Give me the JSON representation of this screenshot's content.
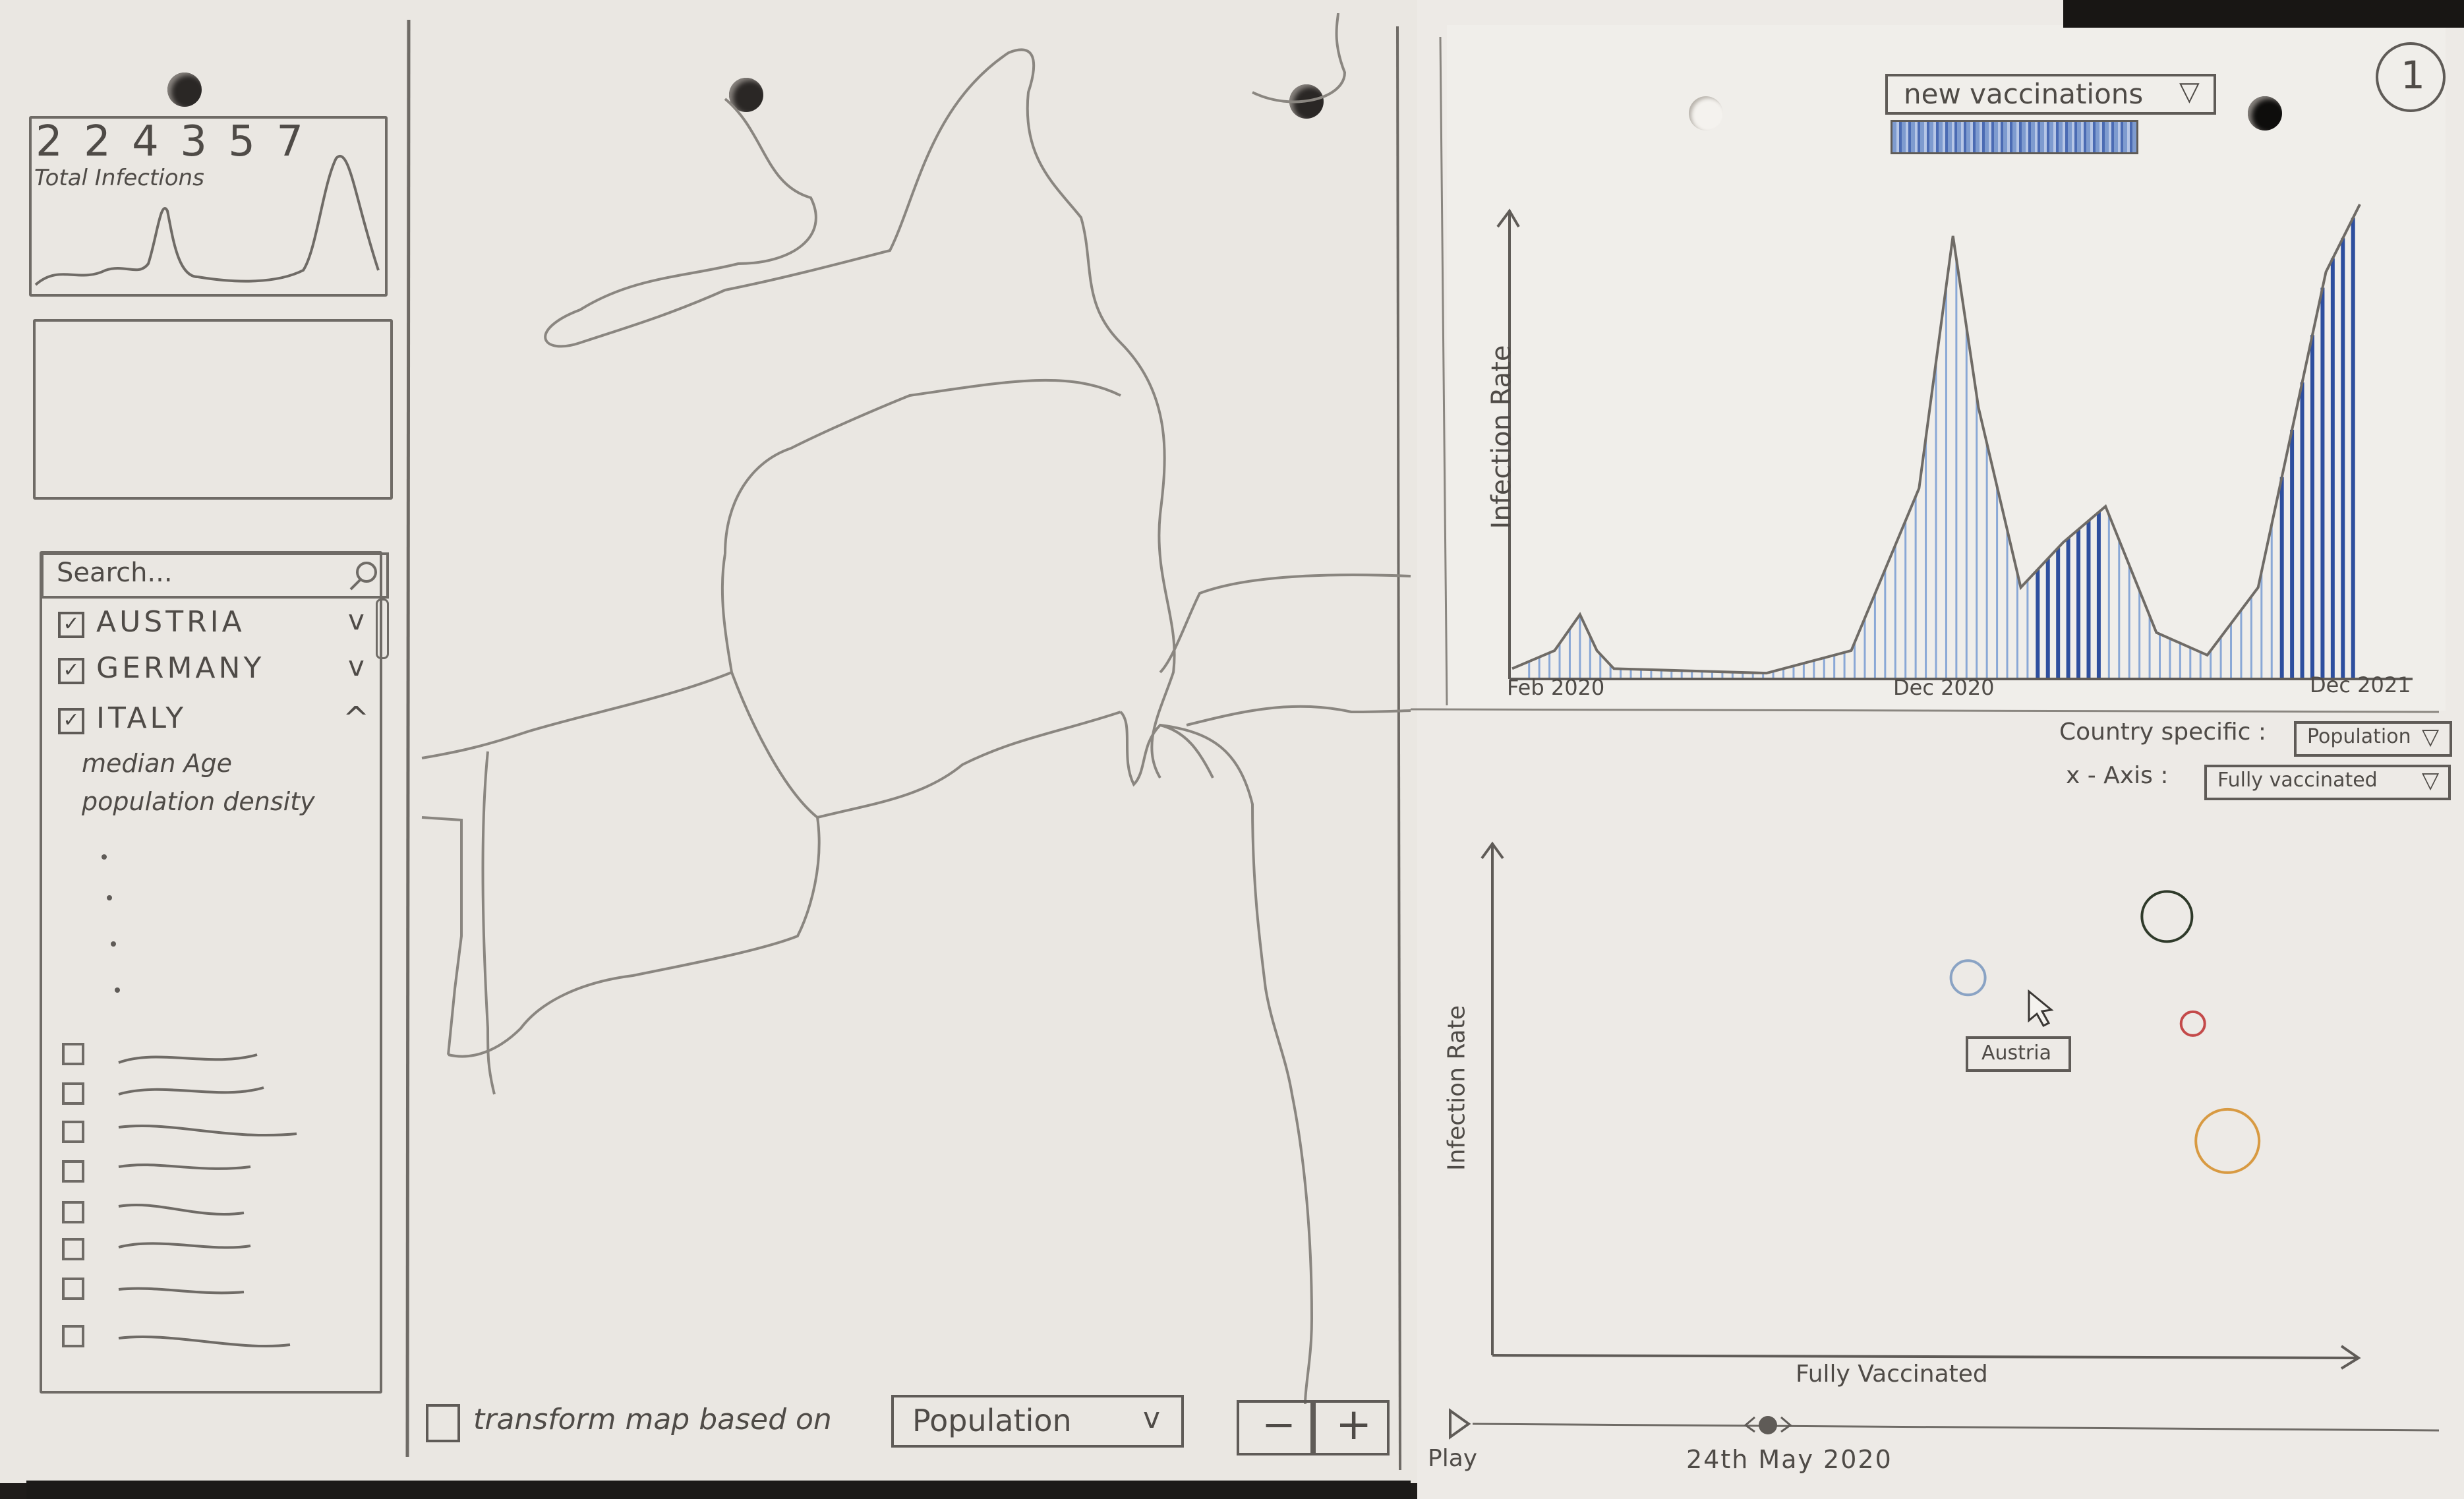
{
  "sidebar": {
    "counter_value": "2 2 4 3 5 7",
    "counter_label": "Total Infections",
    "search_placeholder": "Search...",
    "countries": [
      {
        "label": "AUSTRIA",
        "checked": true,
        "toggle": "v"
      },
      {
        "label": "GERMANY",
        "checked": true,
        "toggle": "v"
      },
      {
        "label": "ITALY",
        "checked": true,
        "toggle": "^"
      }
    ],
    "italy_details": [
      "median Age",
      "population density"
    ]
  },
  "map": {
    "transform_label": "transform map based on",
    "transform_select": "Population",
    "transform_select_caret": "v",
    "zoom_out": "−",
    "zoom_in": "+"
  },
  "timeline_chart": {
    "page_number": "1",
    "metric_select": "new vaccinations",
    "metric_caret": "▽"
  },
  "scatter_chart": {
    "country_specific_label": "Country specific :",
    "country_specific_select": "Population",
    "x_axis_label": "x - Axis :",
    "x_axis_select": "Fully vaccinated",
    "select_caret": "▽",
    "hover_label": "Austria",
    "play_label": "Play",
    "slider_date": "24th May 2020"
  },
  "chart_data": [
    {
      "type": "area",
      "ylabel": "Infection Rate",
      "x_tick_labels": [
        "Feb 2020",
        "Dec 2020",
        "Dec 2021"
      ],
      "series": [
        {
          "x": [
            0,
            0.05,
            0.08,
            0.1,
            0.12,
            0.3,
            0.4,
            0.48,
            0.52,
            0.55,
            0.6,
            0.65,
            0.7,
            0.76,
            0.82,
            0.88,
            0.92,
            0.96,
            1.0
          ],
          "values": [
            0.02,
            0.06,
            0.14,
            0.06,
            0.02,
            0.01,
            0.06,
            0.42,
            0.98,
            0.6,
            0.2,
            0.3,
            0.38,
            0.1,
            0.05,
            0.2,
            0.55,
            0.9,
            1.05
          ]
        }
      ],
      "colors": {
        "fill_stripes": "#8aa8d6",
        "dark_stripes": "#2e4f9e"
      }
    },
    {
      "type": "scatter",
      "xlabel": "Fully Vaccinated",
      "ylabel": "Infection Rate",
      "points": [
        {
          "x": 0.55,
          "y": 0.74,
          "size": 26,
          "color": "#8aa3c4",
          "label": "Austria"
        },
        {
          "x": 0.78,
          "y": 0.86,
          "size": 38,
          "color": "#2f3a2a"
        },
        {
          "x": 0.81,
          "y": 0.65,
          "size": 18,
          "color": "#c44a4a"
        },
        {
          "x": 0.85,
          "y": 0.42,
          "size": 48,
          "color": "#d89a42"
        }
      ]
    }
  ]
}
